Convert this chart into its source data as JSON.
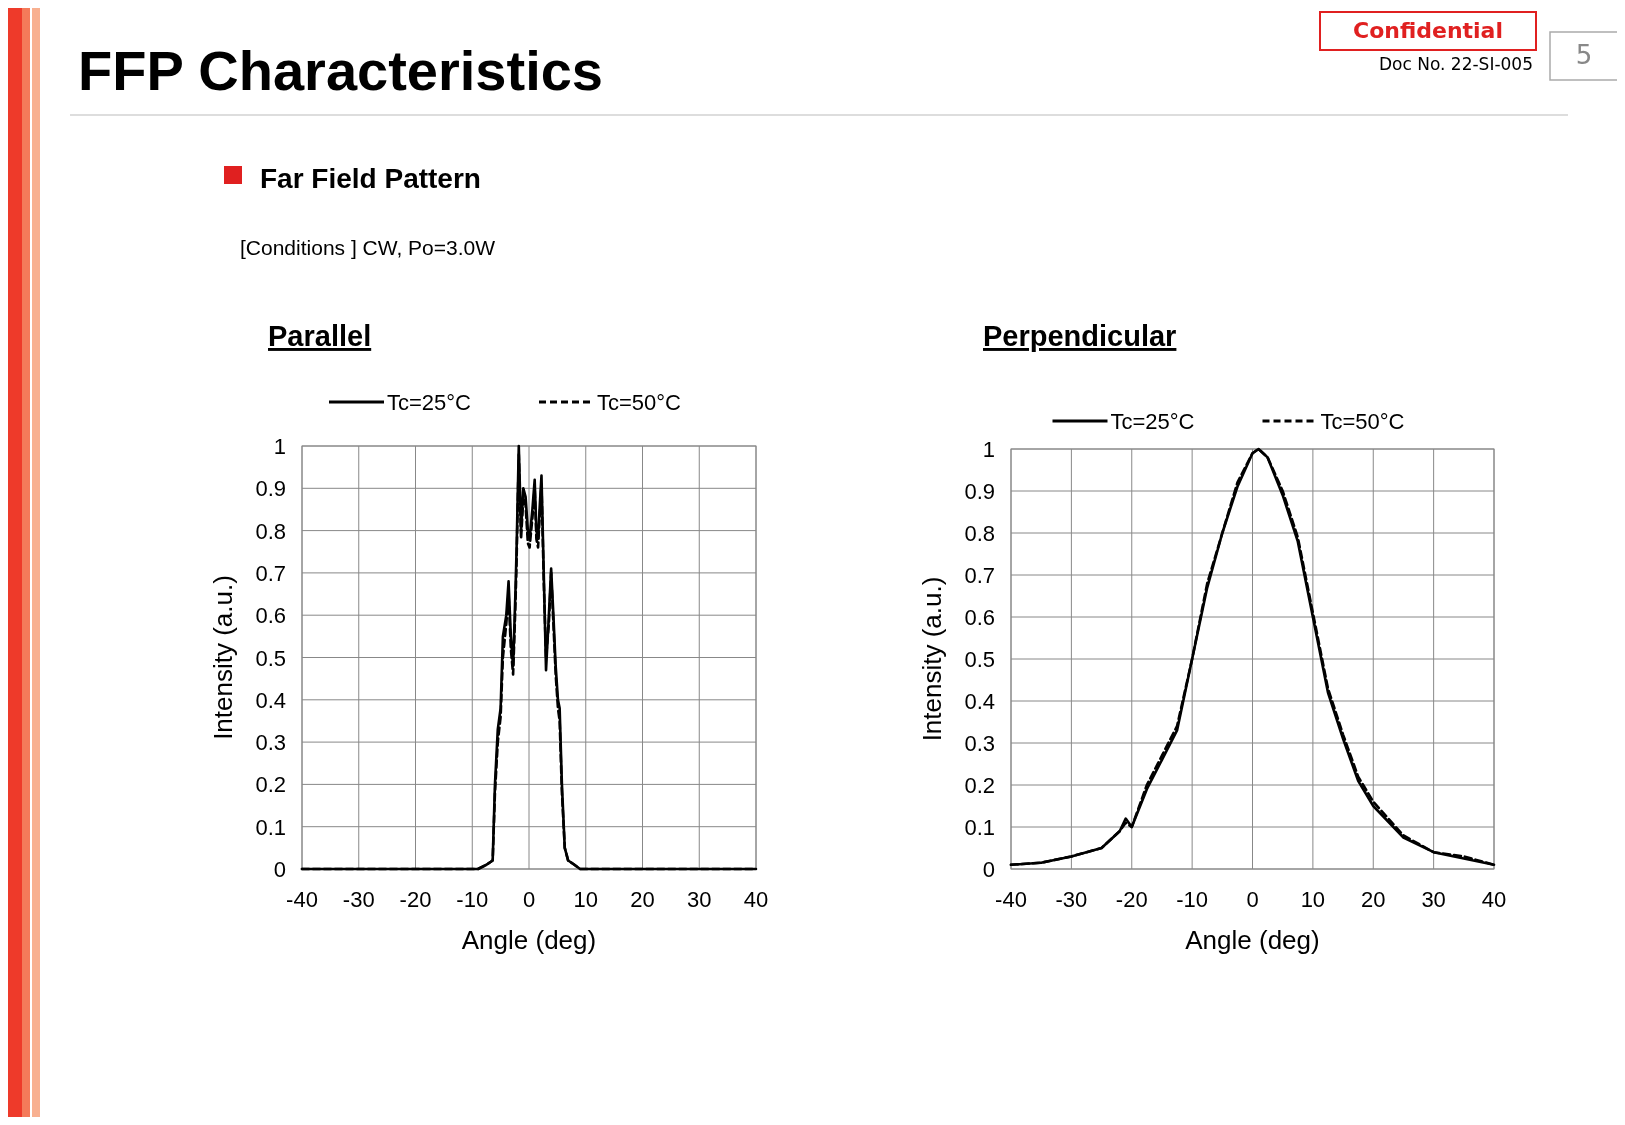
{
  "chart_data": [
    {
      "type": "line",
      "title": "Parallel",
      "xlabel": "Angle  (deg)",
      "ylabel": "Intensity  (a.u.)",
      "annotations": [
        "FFP Characteristics",
        "Far Field Pattern",
        "[Conditions ]   CW, Po=3.0W",
        "Confidential",
        "Doc No. 22-SI-005",
        "5"
      ],
      "xlim": [
        -40,
        40
      ],
      "ylim": [
        0,
        1
      ],
      "xticks": [
        -40,
        -30,
        -20,
        -10,
        0,
        10,
        20,
        30,
        40
      ],
      "yticks": [
        0,
        0.1,
        0.2,
        0.3,
        0.4,
        0.5,
        0.6,
        0.7,
        0.8,
        0.9,
        1
      ],
      "grid": true,
      "legend": "top",
      "series": [
        {
          "name": "Tc=25°C",
          "color": "#000000",
          "line_style": "solid",
          "x": [
            -40,
            -20,
            -9,
            -7.5,
            -6.4,
            -6,
            -5.5,
            -5,
            -4.6,
            -4,
            -3.6,
            -3.2,
            -2.8,
            -2.4,
            -2.2,
            -1.8,
            -1.4,
            -1,
            -0.6,
            -0.2,
            0.1,
            0.6,
            1,
            1.3,
            1.6,
            1.9,
            2.2,
            2.6,
            3,
            3.5,
            3.9,
            4.3,
            4.7,
            5.1,
            5.4,
            5.8,
            6.3,
            6.9,
            8,
            9,
            20,
            40
          ],
          "values": [
            0,
            0,
            0,
            0.01,
            0.02,
            0.2,
            0.33,
            0.38,
            0.55,
            0.6,
            0.68,
            0.55,
            0.48,
            0.65,
            0.75,
            1.0,
            0.8,
            0.9,
            0.88,
            0.8,
            0.78,
            0.85,
            0.92,
            0.8,
            0.78,
            0.86,
            0.93,
            0.7,
            0.47,
            0.6,
            0.71,
            0.6,
            0.48,
            0.4,
            0.38,
            0.2,
            0.05,
            0.02,
            0.01,
            0,
            0,
            0
          ]
        },
        {
          "name": "Tc=50°C",
          "color": "#000000",
          "line_style": "dashed",
          "x": [
            -40,
            -20,
            -9,
            -7.5,
            -6.4,
            -6,
            -5.5,
            -5,
            -4.6,
            -4,
            -3.6,
            -3.2,
            -2.8,
            -2.4,
            -2.2,
            -1.8,
            -1.4,
            -1,
            -0.6,
            -0.2,
            0.1,
            0.6,
            1,
            1.3,
            1.6,
            1.9,
            2.2,
            2.6,
            3,
            3.5,
            3.9,
            4.3,
            4.7,
            5.1,
            5.4,
            5.8,
            6.3,
            6.9,
            8,
            9,
            20,
            40
          ],
          "values": [
            0,
            0,
            0,
            0.01,
            0.02,
            0.18,
            0.3,
            0.36,
            0.5,
            0.58,
            0.65,
            0.52,
            0.46,
            0.62,
            0.72,
            0.98,
            0.78,
            0.88,
            0.86,
            0.77,
            0.76,
            0.83,
            0.9,
            0.78,
            0.76,
            0.84,
            0.91,
            0.68,
            0.5,
            0.58,
            0.7,
            0.58,
            0.46,
            0.38,
            0.35,
            0.18,
            0.05,
            0.02,
            0.01,
            0,
            0,
            0
          ]
        }
      ]
    },
    {
      "type": "line",
      "title": "Perpendicular",
      "xlabel": "Angle  (deg)",
      "ylabel": "Intensity  (a.u.)",
      "xlim": [
        -40,
        40
      ],
      "ylim": [
        0,
        1
      ],
      "xticks": [
        -40,
        -30,
        -20,
        -10,
        0,
        10,
        20,
        30,
        40
      ],
      "yticks": [
        0,
        0.1,
        0.2,
        0.3,
        0.4,
        0.5,
        0.6,
        0.7,
        0.8,
        0.9,
        1
      ],
      "grid": true,
      "legend": "top",
      "series": [
        {
          "name": "Tc=25°C",
          "color": "#000000",
          "line_style": "solid",
          "x": [
            -40,
            -35,
            -30,
            -25,
            -22,
            -21,
            -20,
            -17.5,
            -15,
            -12.5,
            -10,
            -7.5,
            -5,
            -2.5,
            0,
            1,
            2.5,
            5,
            7.5,
            10,
            12.5,
            15,
            17.5,
            20,
            25,
            30,
            35,
            40
          ],
          "values": [
            0.01,
            0.015,
            0.03,
            0.05,
            0.09,
            0.12,
            0.1,
            0.19,
            0.26,
            0.33,
            0.5,
            0.67,
            0.8,
            0.91,
            0.99,
            1.0,
            0.98,
            0.89,
            0.78,
            0.6,
            0.42,
            0.31,
            0.21,
            0.15,
            0.075,
            0.04,
            0.025,
            0.01
          ]
        },
        {
          "name": "Tc=50°C",
          "color": "#000000",
          "line_style": "dashed",
          "x": [
            -40,
            -35,
            -30,
            -25,
            -22,
            -21,
            -20,
            -17.5,
            -15,
            -12.5,
            -10,
            -7.5,
            -5,
            -2.5,
            0,
            1,
            2.5,
            5,
            7.5,
            10,
            12.5,
            15,
            17.5,
            20,
            25,
            30,
            35,
            40
          ],
          "values": [
            0.01,
            0.015,
            0.03,
            0.05,
            0.09,
            0.11,
            0.1,
            0.2,
            0.27,
            0.34,
            0.5,
            0.68,
            0.8,
            0.92,
            0.99,
            1.0,
            0.98,
            0.9,
            0.79,
            0.61,
            0.43,
            0.32,
            0.22,
            0.16,
            0.08,
            0.04,
            0.03,
            0.01
          ]
        }
      ]
    }
  ]
}
